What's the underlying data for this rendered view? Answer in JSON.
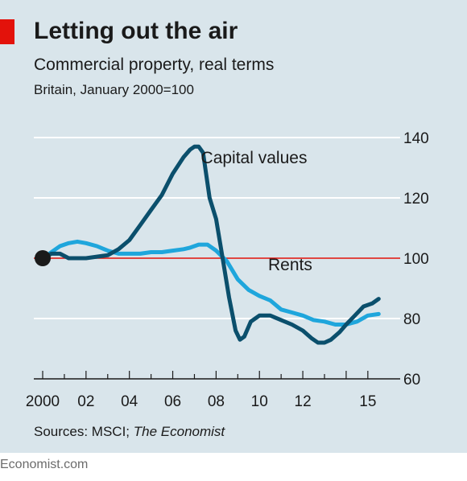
{
  "header": {
    "title": "Letting out the air",
    "subtitle": "Commercial property, real terms",
    "unit_note": "Britain, January 2000=100"
  },
  "source": {
    "prefix": "Sources: MSCI; ",
    "italic": "The Economist"
  },
  "footer": {
    "brand": "Economist.com"
  },
  "colors": {
    "background": "#d9e5eb",
    "capital_values": "#0b4f6c",
    "rents": "#1fa6dc",
    "baseline": "#e3120b",
    "accent_tag": "#e3120b",
    "grid": "#ffffff"
  },
  "chart_data": {
    "type": "line",
    "title": "Letting out the air",
    "subtitle": "Commercial property, real terms",
    "ylabel": "Britain, January 2000=100",
    "xlabel": "",
    "ylim": [
      60,
      140
    ],
    "xlim": [
      2000,
      2015.6
    ],
    "y_ticks": [
      60,
      80,
      100,
      120,
      140
    ],
    "x_ticks": [
      {
        "value": 2000,
        "label": "2000"
      },
      {
        "value": 2002,
        "label": "02"
      },
      {
        "value": 2004,
        "label": "04"
      },
      {
        "value": 2006,
        "label": "06"
      },
      {
        "value": 2008,
        "label": "08"
      },
      {
        "value": 2010,
        "label": "10"
      },
      {
        "value": 2012,
        "label": "12"
      },
      {
        "value": 2015,
        "label": "15"
      }
    ],
    "baseline": 100,
    "grid": true,
    "y_axis_side": "right",
    "series": [
      {
        "name": "Capital values",
        "x": [
          2000,
          2000.4,
          2000.8,
          2001.2,
          2001.6,
          2002.0,
          2002.5,
          2003.0,
          2003.5,
          2004.0,
          2004.5,
          2005.0,
          2005.5,
          2006.0,
          2006.5,
          2006.8,
          2007.0,
          2007.2,
          2007.4,
          2007.7,
          2008.0,
          2008.3,
          2008.6,
          2008.9,
          2009.1,
          2009.3,
          2009.6,
          2010.0,
          2010.5,
          2011.0,
          2011.5,
          2012.0,
          2012.4,
          2012.7,
          2013.0,
          2013.3,
          2013.7,
          2014.0,
          2014.4,
          2014.8,
          2015.2,
          2015.5
        ],
        "values": [
          100,
          101.5,
          101.5,
          100,
          100,
          100,
          100.5,
          101,
          103,
          106,
          111,
          116,
          121,
          128,
          133.5,
          136,
          137,
          137,
          135,
          120,
          113,
          100,
          87,
          76,
          73,
          74,
          79,
          81,
          81,
          79.5,
          78,
          76,
          73.5,
          72,
          72,
          73,
          75.5,
          78,
          81,
          84,
          85,
          86.5
        ]
      },
      {
        "name": "Rents",
        "x": [
          2000,
          2000.4,
          2000.8,
          2001.2,
          2001.6,
          2002.0,
          2002.5,
          2003.0,
          2003.5,
          2004.0,
          2004.5,
          2005.0,
          2005.5,
          2006.0,
          2006.5,
          2006.8,
          2007.2,
          2007.6,
          2008.0,
          2008.5,
          2009.0,
          2009.5,
          2010.0,
          2010.5,
          2011.0,
          2011.5,
          2012.0,
          2012.5,
          2013.0,
          2013.5,
          2014.0,
          2014.5,
          2015.0,
          2015.5
        ],
        "values": [
          100,
          102,
          104,
          105,
          105.5,
          105,
          104,
          102.5,
          101.5,
          101.5,
          101.5,
          102,
          102,
          102.5,
          103,
          103.5,
          104.5,
          104.5,
          102.5,
          99,
          93,
          89.5,
          87.5,
          86,
          83,
          82,
          81,
          79.5,
          79,
          78,
          78,
          79,
          81,
          81.5
        ]
      }
    ],
    "annotations": [
      {
        "text": "Capital values",
        "x": 2007.3,
        "y": 131.5
      },
      {
        "text": "Rents",
        "x": 2010.4,
        "y": 96
      }
    ]
  }
}
